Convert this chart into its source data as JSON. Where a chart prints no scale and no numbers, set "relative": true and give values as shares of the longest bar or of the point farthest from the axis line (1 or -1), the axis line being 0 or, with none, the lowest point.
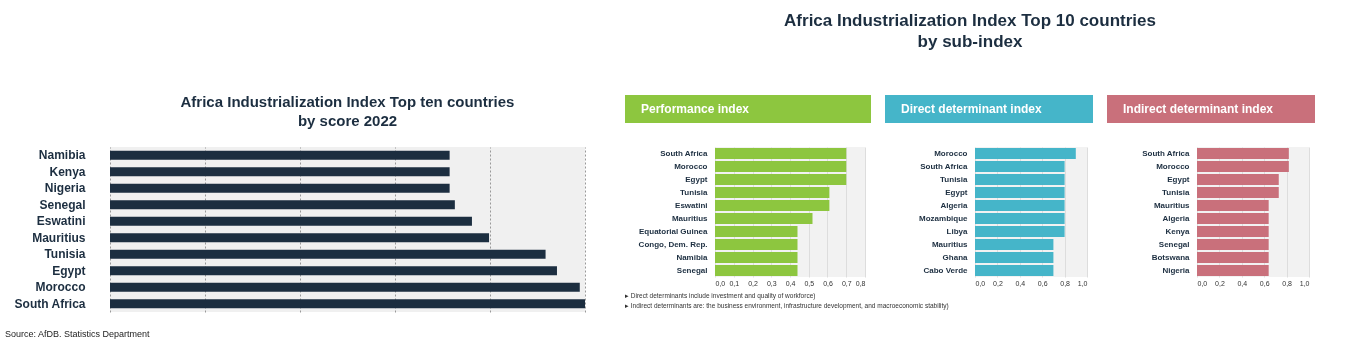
{
  "chart_data": [
    {
      "type": "bar",
      "orientation": "horizontal",
      "relative": true,
      "title": "Africa Industrialization Index Top ten countries\nby score 2022",
      "categories": [
        "Namibia",
        "Kenya",
        "Nigeria",
        "Senegal",
        "Eswatini",
        "Mauritius",
        "Tunisia",
        "Egypt",
        "Morocco",
        "South Africa"
      ],
      "values": [
        0.715,
        0.715,
        0.715,
        0.726,
        0.762,
        0.798,
        0.917,
        0.941,
        0.989,
        1
      ],
      "color": "#1c2e40",
      "grid": "x",
      "annotations": [
        "Source: AfDB. Statistics Department"
      ]
    },
    {
      "type": "bar",
      "orientation": "horizontal",
      "title": "Africa Industrialization Index Top 10 countries\nby sub-index",
      "subtitle": "Performance index",
      "categories": [
        "South Africa",
        "Morocco",
        "Egypt",
        "Tunisia",
        "Eswatini",
        "Mauritius",
        "Equatorial Guinea",
        "Congo, Dem. Rep.",
        "Namibia",
        "Senegal"
      ],
      "values": [
        0.7,
        0.7,
        0.7,
        0.61,
        0.61,
        0.52,
        0.44,
        0.44,
        0.44,
        0.44
      ],
      "color": "#8dc63f",
      "grid": "x",
      "xlim": [
        0,
        0.8
      ],
      "xticks": [
        {
          "value": 0,
          "label": "0,0"
        },
        {
          "value": 0.1,
          "label": "0,1"
        },
        {
          "value": 0.2,
          "label": "0,2"
        },
        {
          "value": 0.3,
          "label": "0,3"
        },
        {
          "value": 0.4,
          "label": "0,4"
        },
        {
          "value": 0.5,
          "label": "0,5"
        },
        {
          "value": 0.6,
          "label": "0,6"
        },
        {
          "value": 0.7,
          "label": "0,7"
        },
        {
          "value": 0.8,
          "label": "0,8"
        }
      ],
      "annotations": [
        "▸ Direct determinants include investment and quality of workforce)",
        "▸ Indirect determinants are: the business environment, infrastructure development, and macroeconomic stability)"
      ]
    },
    {
      "type": "bar",
      "orientation": "horizontal",
      "subtitle": "Direct determinant index",
      "categories": [
        "Morocco",
        "South Africa",
        "Tunisia",
        "Egypt",
        "Algeria",
        "Mozambique",
        "Libya",
        "Mauritius",
        "Ghana",
        "Cabo Verde"
      ],
      "values": [
        0.9,
        0.8,
        0.8,
        0.8,
        0.8,
        0.8,
        0.8,
        0.7,
        0.7,
        0.7
      ],
      "color": "#45b5c9",
      "grid": "x",
      "xlim": [
        0,
        1
      ],
      "xticks": [
        {
          "value": 0,
          "label": "0,0"
        },
        {
          "value": 0.2,
          "label": "0,2"
        },
        {
          "value": 0.4,
          "label": "0,4"
        },
        {
          "value": 0.6,
          "label": "0,6"
        },
        {
          "value": 0.8,
          "label": "0,8"
        },
        {
          "value": 1,
          "label": "1,0"
        }
      ]
    },
    {
      "type": "bar",
      "orientation": "horizontal",
      "subtitle": "Indirect determinant index",
      "categories": [
        "South Africa",
        "Morocco",
        "Egypt",
        "Tunisia",
        "Mauritius",
        "Algeria",
        "Kenya",
        "Senegal",
        "Botswana",
        "Nigeria"
      ],
      "values": [
        0.82,
        0.82,
        0.73,
        0.73,
        0.64,
        0.64,
        0.64,
        0.64,
        0.64,
        0.64
      ],
      "color": "#c9707b",
      "grid": "x",
      "xlim": [
        0,
        1
      ],
      "xticks": [
        {
          "value": 0,
          "label": "0,0"
        },
        {
          "value": 0.2,
          "label": "0,2"
        },
        {
          "value": 0.4,
          "label": "0,4"
        },
        {
          "value": 0.6,
          "label": "0,6"
        },
        {
          "value": 0.8,
          "label": "0,8"
        },
        {
          "value": 1,
          "label": "1,0"
        }
      ]
    }
  ]
}
